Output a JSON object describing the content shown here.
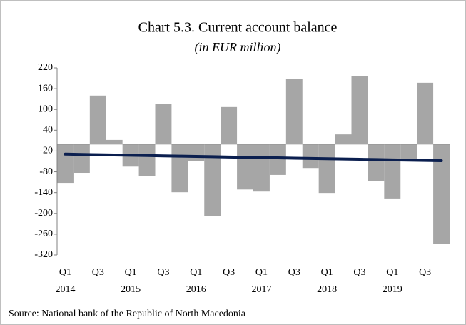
{
  "chart_data": {
    "type": "bar",
    "title": "Chart 5.3. Current account balance",
    "subtitle": "(in EUR million)",
    "source": "Source: National bank of the Republic of North Macedonia",
    "categories": [
      "Q1",
      null,
      "Q3",
      null,
      "Q1",
      null,
      "Q3",
      null,
      "Q1",
      null,
      "Q3",
      null,
      "Q1",
      null,
      "Q3",
      null,
      "Q1",
      null,
      "Q3",
      null,
      "Q1",
      null,
      "Q3",
      null
    ],
    "years": [
      "2014",
      "2015",
      "2016",
      "2017",
      "2018",
      "2019"
    ],
    "series": [
      {
        "color": "#a6a6a6",
        "values": [
          -112,
          -83,
          140,
          12,
          -65,
          -93,
          115,
          -139,
          -48,
          -207,
          107,
          -131,
          -137,
          -89,
          187,
          -69,
          -141,
          28,
          197,
          -106,
          -157,
          -48,
          177,
          -289
        ]
      },
      {
        "type": "line",
        "color": "#0b1f4f",
        "values": [
          -29,
          -29.8,
          -30.7,
          -31.5,
          -32.3,
          -33.1,
          -34,
          -34.8,
          -35.6,
          -36.4,
          -37.3,
          -38.1,
          -38.9,
          -39.7,
          -40.6,
          -41.4,
          -42.2,
          -43,
          -43.9,
          -44.7,
          -45.5,
          -46.3,
          -47.2,
          -48
        ]
      }
    ],
    "ylim": [
      -320,
      220
    ],
    "yticks": [
      -320,
      -260,
      -200,
      -140,
      -80,
      -20,
      40,
      100,
      160,
      220
    ]
  }
}
